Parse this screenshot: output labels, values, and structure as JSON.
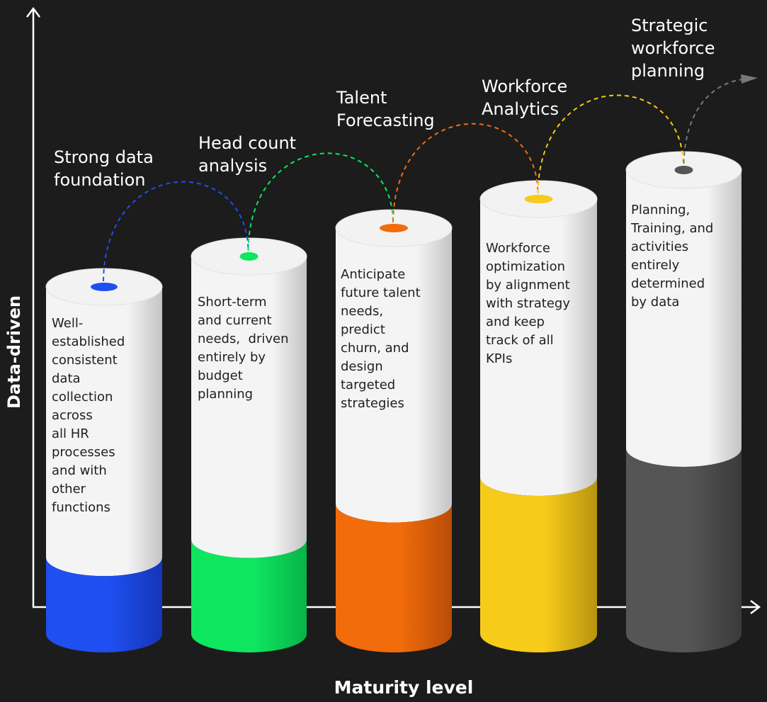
{
  "axes": {
    "y_label": "Data-driven",
    "x_label": "Maturity level"
  },
  "stages": [
    {
      "title_lines": [
        "Strong data",
        "foundation"
      ],
      "description_lines": [
        "Well-",
        "established",
        "consistent",
        "data",
        "collection",
        "across",
        "all HR",
        "processes",
        "and with",
        "other",
        "functions"
      ],
      "color": "#1f4ff0",
      "color_dark": "#1535b8",
      "fill_level": 0.22
    },
    {
      "title_lines": [
        "Head count",
        "analysis"
      ],
      "description_lines": [
        "Short-term",
        "and current",
        "needs,  driven",
        "entirely by",
        "budget",
        "planning"
      ],
      "color": "#0fe660",
      "color_dark": "#07b348",
      "fill_level": 0.25
    },
    {
      "title_lines": [
        "Talent",
        "Forecasting"
      ],
      "description_lines": [
        "Anticipate",
        "future talent",
        "needs,",
        "predict",
        "churn, and",
        "design",
        "targeted",
        "strategies"
      ],
      "color": "#f26c0c",
      "color_dark": "#b84d06",
      "fill_level": 0.32
    },
    {
      "title_lines": [
        "Workforce",
        "Analytics"
      ],
      "description_lines": [
        "Workforce",
        "optimization",
        "by alignment",
        "with strategy",
        "and keep",
        "track of all",
        "KPIs"
      ],
      "color": "#f7cb1a",
      "color_dark": "#b79410",
      "fill_level": 0.36
    },
    {
      "title_lines": [
        "Strategic",
        "workforce",
        "planning"
      ],
      "description_lines": [
        "Planning,",
        "Training, and",
        "activities",
        "entirely",
        "determined",
        "by data"
      ],
      "color": "#555555",
      "color_dark": "#3a3a3a",
      "fill_level": 0.4
    }
  ],
  "colors": {
    "background": "#1c1c1c",
    "axis": "#ffffff",
    "cylinder_light": "#f4f4f4",
    "cylinder_shade": "#c4c4c4",
    "cylinder_top": "#f2f2f2",
    "next_arrow": "#777777"
  }
}
